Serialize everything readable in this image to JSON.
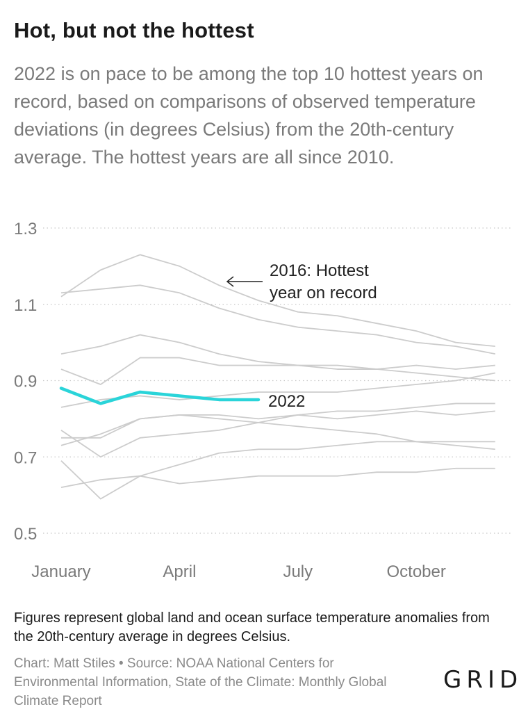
{
  "title": "Hot, but not the hottest",
  "subtitle": "2022 is on pace to be among the top 10 hottest years on record, based on comparisons of observed temperature deviations (in degrees Celsius) from the 20th-century average. The hottest years are all since 2010.",
  "footnote": "Figures represent global land and ocean surface temperature anomalies from the 20th-century average in degrees Celsius.",
  "credit": "Chart: Matt Stiles • Source: NOAA National Centers for Environmental Information, State of the Climate: Monthly Global Climate Report",
  "logo": "GRID",
  "colors": {
    "highlight": "#2ad4d9",
    "other_years": "#cccccc",
    "grid": "#c8c8c8",
    "tick_text": "#7a7a7a"
  },
  "chart_data": {
    "type": "line",
    "x_labels": [
      "January",
      "April",
      "July",
      "October"
    ],
    "x_label_months": [
      1,
      4,
      7,
      10
    ],
    "ylim": [
      0.5,
      1.3
    ],
    "y_ticks": [
      "1.3",
      "1.1",
      "0.9",
      "0.7",
      "0.5"
    ],
    "grid": true,
    "highlight_series": {
      "name": "2022",
      "values": [
        0.88,
        0.84,
        0.87,
        0.86,
        0.85,
        0.85
      ]
    },
    "other_series": [
      {
        "values": [
          1.12,
          1.19,
          1.23,
          1.2,
          1.15,
          1.11,
          1.08,
          1.07,
          1.05,
          1.03,
          1.0,
          0.99
        ]
      },
      {
        "values": [
          1.13,
          1.14,
          1.15,
          1.13,
          1.09,
          1.06,
          1.04,
          1.03,
          1.02,
          1.0,
          0.99,
          0.97
        ]
      },
      {
        "values": [
          0.97,
          0.99,
          1.02,
          1.0,
          0.97,
          0.95,
          0.94,
          0.93,
          0.93,
          0.92,
          0.91,
          0.9
        ]
      },
      {
        "values": [
          0.93,
          0.89,
          0.96,
          0.96,
          0.94,
          0.94,
          0.94,
          0.94,
          0.93,
          0.94,
          0.93,
          0.94
        ]
      },
      {
        "values": [
          0.83,
          0.85,
          0.86,
          0.85,
          0.86,
          0.87,
          0.87,
          0.87,
          0.88,
          0.89,
          0.9,
          0.92
        ]
      },
      {
        "values": [
          0.75,
          0.75,
          0.8,
          0.81,
          0.81,
          0.8,
          0.81,
          0.82,
          0.82,
          0.83,
          0.84,
          0.84
        ]
      },
      {
        "values": [
          0.73,
          0.76,
          0.8,
          0.81,
          0.8,
          0.79,
          0.78,
          0.77,
          0.76,
          0.74,
          0.73,
          0.72
        ]
      },
      {
        "values": [
          0.77,
          0.7,
          0.75,
          0.76,
          0.77,
          0.79,
          0.81,
          0.8,
          0.81,
          0.82,
          0.81,
          0.82
        ]
      },
      {
        "values": [
          0.69,
          0.59,
          0.65,
          0.68,
          0.71,
          0.72,
          0.72,
          0.73,
          0.74,
          0.74,
          0.74,
          0.74
        ]
      },
      {
        "values": [
          0.62,
          0.64,
          0.65,
          0.63,
          0.64,
          0.65,
          0.65,
          0.65,
          0.66,
          0.66,
          0.67,
          0.67
        ]
      }
    ],
    "annotations": {
      "hottest_line1": "2016: Hottest",
      "hottest_line2": "year on record",
      "current_label": "2022"
    }
  }
}
